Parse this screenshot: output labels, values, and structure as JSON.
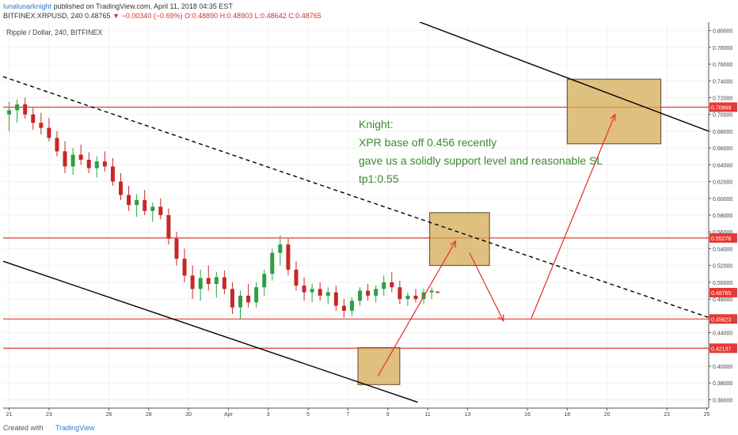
{
  "header": {
    "author": "lunalunarknight",
    "published": "published on TradingView.com, April 11, 2018 04:35 EST",
    "ticker_line_prefix": "BITFINEX:XRPUSD, 240 0.48765",
    "change_arrow": "▼",
    "change_text": "−0.00340 (−0.69%)",
    "ohlc": "O:0.48890 H:0.48903 L:0.48642 C:0.48765"
  },
  "chart_title": "Ripple / Dollar, 240, BITFINEX",
  "annotation": {
    "line1": "Knight:",
    "line2": "XPR base off 0.456 recently",
    "line3": "gave us a solidly support level and reasonable SL",
    "line4": "tp1:0.55",
    "color": "#3a8a2e"
  },
  "footer": {
    "created": "Created with",
    "brand": "TradingView"
  },
  "chart_data": {
    "type": "candlestick",
    "ylim": [
      0.35,
      0.81
    ],
    "y_ticks": [
      "0.36000",
      "0.38000",
      "0.40000",
      "0.42000",
      "0.44000",
      "0.46000",
      "0.48000",
      "0.50000",
      "0.52000",
      "0.54000",
      "0.56000",
      "0.58000",
      "0.60000",
      "0.62000",
      "0.64000",
      "0.66000",
      "0.68000",
      "0.70000",
      "0.72000",
      "0.74000",
      "0.76000",
      "0.78000",
      "0.80000"
    ],
    "x_ticks": [
      {
        "label": "21",
        "day": 0
      },
      {
        "label": "23",
        "day": 2
      },
      {
        "label": "26",
        "day": 5
      },
      {
        "label": "28",
        "day": 7
      },
      {
        "label": "30",
        "day": 9
      },
      {
        "label": "Apr",
        "day": 11
      },
      {
        "label": "3",
        "day": 13
      },
      {
        "label": "5",
        "day": 15
      },
      {
        "label": "7",
        "day": 17
      },
      {
        "label": "9",
        "day": 19
      },
      {
        "label": "11",
        "day": 21
      },
      {
        "label": "13",
        "day": 23
      },
      {
        "label": "16",
        "day": 26
      },
      {
        "label": "18",
        "day": 28
      },
      {
        "label": "20",
        "day": 30
      },
      {
        "label": "23",
        "day": 33
      },
      {
        "label": "25",
        "day": 35
      }
    ],
    "horizontal_levels": [
      {
        "value": 0.70869,
        "label": "0.70869",
        "color": "#e53935"
      },
      {
        "value": 0.55278,
        "label": "0.55278",
        "color": "#e53935"
      },
      {
        "value": 0.45623,
        "label": "0.45623",
        "color": "#e53935"
      },
      {
        "value": 0.42137,
        "label": "0.42137",
        "color": "#e53935"
      }
    ],
    "last_price": {
      "value": 0.48765,
      "label": "0.48765"
    },
    "trendlines": [
      {
        "style": "solid",
        "color": "#000000",
        "from": {
          "day": 19.5,
          "price": 0.82
        },
        "to": {
          "day": 35.1,
          "price": 0.68
        }
      },
      {
        "style": "dashed",
        "color": "#000000",
        "from": {
          "day": -0.3,
          "price": 0.745
        },
        "to": {
          "day": 35.1,
          "price": 0.458
        }
      },
      {
        "style": "solid",
        "color": "#000000",
        "from": {
          "day": -0.3,
          "price": 0.525
        },
        "to": {
          "day": 20.5,
          "price": 0.357
        }
      }
    ],
    "boxes": [
      {
        "day0": 28,
        "day1": 32.7,
        "p0": 0.665,
        "p1": 0.742,
        "fill": "#d4a84e"
      },
      {
        "day0": 21.1,
        "day1": 24.1,
        "p0": 0.52,
        "p1": 0.583,
        "fill": "#d4a84e"
      },
      {
        "day0": 17.5,
        "day1": 19.6,
        "p0": 0.378,
        "p1": 0.422,
        "fill": "#d4a84e"
      }
    ],
    "arrows": [
      {
        "path": [
          {
            "day": 18.5,
            "price": 0.388
          },
          {
            "day": 22.4,
            "price": 0.549
          }
        ],
        "color": "#e53935"
      },
      {
        "path": [
          {
            "day": 23.1,
            "price": 0.535
          },
          {
            "day": 24.8,
            "price": 0.454
          }
        ],
        "color": "#e53935"
      },
      {
        "path": [
          {
            "day": 26.2,
            "price": 0.457
          },
          {
            "day": 30.4,
            "price": 0.7
          }
        ],
        "color": "#e53935"
      }
    ],
    "candles": [
      {
        "day": 0.0,
        "o": 0.7,
        "h": 0.715,
        "l": 0.68,
        "c": 0.705
      },
      {
        "day": 0.4,
        "o": 0.705,
        "h": 0.718,
        "l": 0.69,
        "c": 0.712
      },
      {
        "day": 0.8,
        "o": 0.712,
        "h": 0.72,
        "l": 0.695,
        "c": 0.7
      },
      {
        "day": 1.2,
        "o": 0.7,
        "h": 0.708,
        "l": 0.682,
        "c": 0.69
      },
      {
        "day": 1.6,
        "o": 0.69,
        "h": 0.702,
        "l": 0.676,
        "c": 0.684
      },
      {
        "day": 2.0,
        "o": 0.684,
        "h": 0.696,
        "l": 0.668,
        "c": 0.672
      },
      {
        "day": 2.4,
        "o": 0.672,
        "h": 0.68,
        "l": 0.65,
        "c": 0.656
      },
      {
        "day": 2.8,
        "o": 0.656,
        "h": 0.668,
        "l": 0.63,
        "c": 0.638
      },
      {
        "day": 3.2,
        "o": 0.638,
        "h": 0.66,
        "l": 0.628,
        "c": 0.652
      },
      {
        "day": 3.6,
        "o": 0.652,
        "h": 0.664,
        "l": 0.64,
        "c": 0.646
      },
      {
        "day": 4.0,
        "o": 0.646,
        "h": 0.655,
        "l": 0.63,
        "c": 0.636
      },
      {
        "day": 4.4,
        "o": 0.636,
        "h": 0.65,
        "l": 0.625,
        "c": 0.644
      },
      {
        "day": 4.8,
        "o": 0.644,
        "h": 0.656,
        "l": 0.632,
        "c": 0.638
      },
      {
        "day": 5.2,
        "o": 0.638,
        "h": 0.648,
        "l": 0.615,
        "c": 0.62
      },
      {
        "day": 5.6,
        "o": 0.62,
        "h": 0.63,
        "l": 0.598,
        "c": 0.604
      },
      {
        "day": 6.0,
        "o": 0.604,
        "h": 0.615,
        "l": 0.585,
        "c": 0.592
      },
      {
        "day": 6.4,
        "o": 0.592,
        "h": 0.605,
        "l": 0.578,
        "c": 0.598
      },
      {
        "day": 6.8,
        "o": 0.598,
        "h": 0.61,
        "l": 0.58,
        "c": 0.585
      },
      {
        "day": 7.2,
        "o": 0.585,
        "h": 0.595,
        "l": 0.572,
        "c": 0.59
      },
      {
        "day": 7.6,
        "o": 0.59,
        "h": 0.6,
        "l": 0.575,
        "c": 0.58
      },
      {
        "day": 8.0,
        "o": 0.58,
        "h": 0.588,
        "l": 0.545,
        "c": 0.552
      },
      {
        "day": 8.4,
        "o": 0.552,
        "h": 0.56,
        "l": 0.52,
        "c": 0.528
      },
      {
        "day": 8.8,
        "o": 0.528,
        "h": 0.54,
        "l": 0.5,
        "c": 0.508
      },
      {
        "day": 9.2,
        "o": 0.508,
        "h": 0.52,
        "l": 0.48,
        "c": 0.492
      },
      {
        "day": 9.6,
        "o": 0.492,
        "h": 0.515,
        "l": 0.478,
        "c": 0.505
      },
      {
        "day": 10.0,
        "o": 0.505,
        "h": 0.52,
        "l": 0.49,
        "c": 0.498
      },
      {
        "day": 10.4,
        "o": 0.498,
        "h": 0.512,
        "l": 0.482,
        "c": 0.506
      },
      {
        "day": 10.8,
        "o": 0.506,
        "h": 0.514,
        "l": 0.486,
        "c": 0.492
      },
      {
        "day": 11.2,
        "o": 0.492,
        "h": 0.5,
        "l": 0.462,
        "c": 0.47
      },
      {
        "day": 11.6,
        "o": 0.47,
        "h": 0.49,
        "l": 0.456,
        "c": 0.484
      },
      {
        "day": 12.0,
        "o": 0.484,
        "h": 0.498,
        "l": 0.47,
        "c": 0.476
      },
      {
        "day": 12.4,
        "o": 0.476,
        "h": 0.5,
        "l": 0.47,
        "c": 0.494
      },
      {
        "day": 12.8,
        "o": 0.494,
        "h": 0.515,
        "l": 0.484,
        "c": 0.51
      },
      {
        "day": 13.2,
        "o": 0.51,
        "h": 0.54,
        "l": 0.502,
        "c": 0.535
      },
      {
        "day": 13.6,
        "o": 0.535,
        "h": 0.556,
        "l": 0.52,
        "c": 0.545
      },
      {
        "day": 14.0,
        "o": 0.545,
        "h": 0.552,
        "l": 0.508,
        "c": 0.515
      },
      {
        "day": 14.4,
        "o": 0.515,
        "h": 0.525,
        "l": 0.49,
        "c": 0.496
      },
      {
        "day": 14.8,
        "o": 0.496,
        "h": 0.506,
        "l": 0.478,
        "c": 0.488
      },
      {
        "day": 15.2,
        "o": 0.488,
        "h": 0.498,
        "l": 0.476,
        "c": 0.492
      },
      {
        "day": 15.6,
        "o": 0.492,
        "h": 0.5,
        "l": 0.478,
        "c": 0.484
      },
      {
        "day": 16.0,
        "o": 0.484,
        "h": 0.494,
        "l": 0.474,
        "c": 0.488
      },
      {
        "day": 16.4,
        "o": 0.488,
        "h": 0.496,
        "l": 0.466,
        "c": 0.472
      },
      {
        "day": 16.8,
        "o": 0.472,
        "h": 0.48,
        "l": 0.458,
        "c": 0.466
      },
      {
        "day": 17.2,
        "o": 0.466,
        "h": 0.482,
        "l": 0.46,
        "c": 0.478
      },
      {
        "day": 17.6,
        "o": 0.478,
        "h": 0.494,
        "l": 0.472,
        "c": 0.49
      },
      {
        "day": 18.0,
        "o": 0.49,
        "h": 0.498,
        "l": 0.478,
        "c": 0.484
      },
      {
        "day": 18.4,
        "o": 0.484,
        "h": 0.496,
        "l": 0.476,
        "c": 0.492
      },
      {
        "day": 18.8,
        "o": 0.492,
        "h": 0.508,
        "l": 0.484,
        "c": 0.5
      },
      {
        "day": 19.2,
        "o": 0.5,
        "h": 0.512,
        "l": 0.488,
        "c": 0.494
      },
      {
        "day": 19.6,
        "o": 0.494,
        "h": 0.502,
        "l": 0.474,
        "c": 0.48
      },
      {
        "day": 20.0,
        "o": 0.48,
        "h": 0.488,
        "l": 0.472,
        "c": 0.484
      },
      {
        "day": 20.4,
        "o": 0.484,
        "h": 0.492,
        "l": 0.476,
        "c": 0.48
      },
      {
        "day": 20.8,
        "o": 0.48,
        "h": 0.492,
        "l": 0.474,
        "c": 0.488
      },
      {
        "day": 21.2,
        "o": 0.488,
        "h": 0.494,
        "l": 0.48,
        "c": 0.49
      },
      {
        "day": 21.5,
        "o": 0.4889,
        "h": 0.489,
        "l": 0.4864,
        "c": 0.48765
      }
    ]
  }
}
